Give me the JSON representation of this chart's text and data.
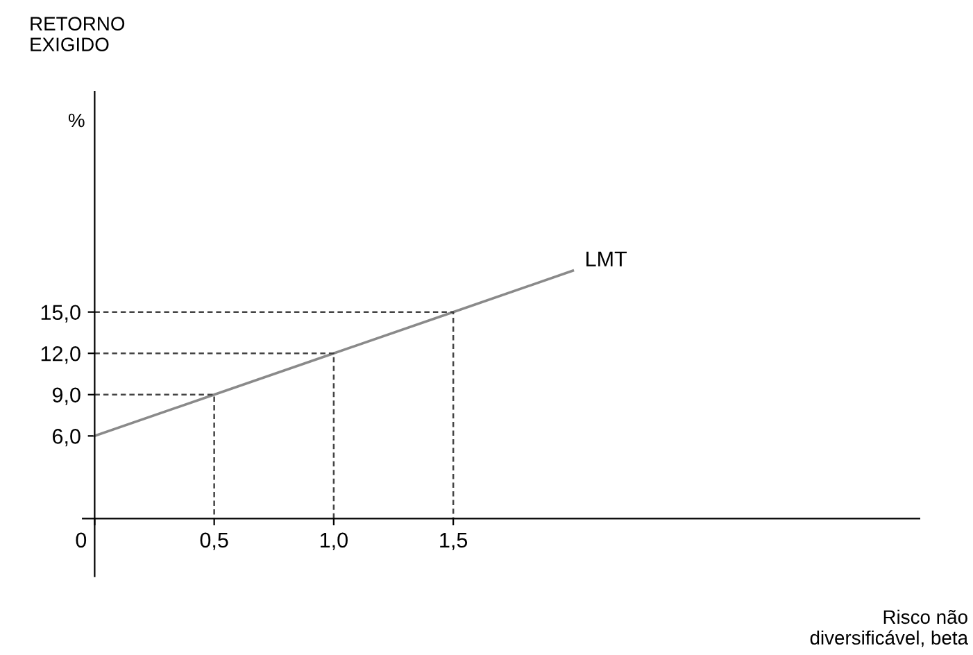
{
  "chart_data": {
    "type": "line",
    "ylabel": "RETORNO\nEXIGIDO",
    "xlabel": "Risco não\ndiversificável, beta",
    "annotations": [
      "%"
    ],
    "x": [
      0,
      0.5,
      1.0,
      1.5,
      2.0
    ],
    "series": [
      {
        "name": "LMT",
        "color": "#8a8a8a",
        "values": [
          6,
          9,
          12,
          15,
          18
        ]
      },
      {
        "x": [
          0,
          0.5,
          0.5
        ],
        "values": [
          9,
          9,
          0
        ],
        "color": "#444444",
        "line_style": "dashed"
      },
      {
        "x": [
          0,
          1.0,
          1.0
        ],
        "values": [
          12,
          12,
          0
        ],
        "color": "#444444",
        "line_style": "dashed"
      },
      {
        "x": [
          0,
          1.5,
          1.5
        ],
        "values": [
          15,
          15,
          0
        ],
        "color": "#444444",
        "line_style": "dashed"
      }
    ],
    "xlim": [
      -0.05,
      3.45
    ],
    "ylim": [
      -4.2,
      31
    ],
    "xticks": [
      {
        "value": 0,
        "label": "0"
      },
      {
        "value": 0.5,
        "label": "0,5"
      },
      {
        "value": 1.0,
        "label": "1,0"
      },
      {
        "value": 1.5,
        "label": "1,5"
      }
    ],
    "yticks": [
      {
        "value": 6,
        "label": "6,0"
      },
      {
        "value": 9,
        "label": "9,0"
      },
      {
        "value": 12,
        "label": "12,0"
      },
      {
        "value": 15,
        "label": "15,0"
      }
    ],
    "grid": false,
    "legend": false,
    "marker": "none",
    "line_style": "solid"
  }
}
